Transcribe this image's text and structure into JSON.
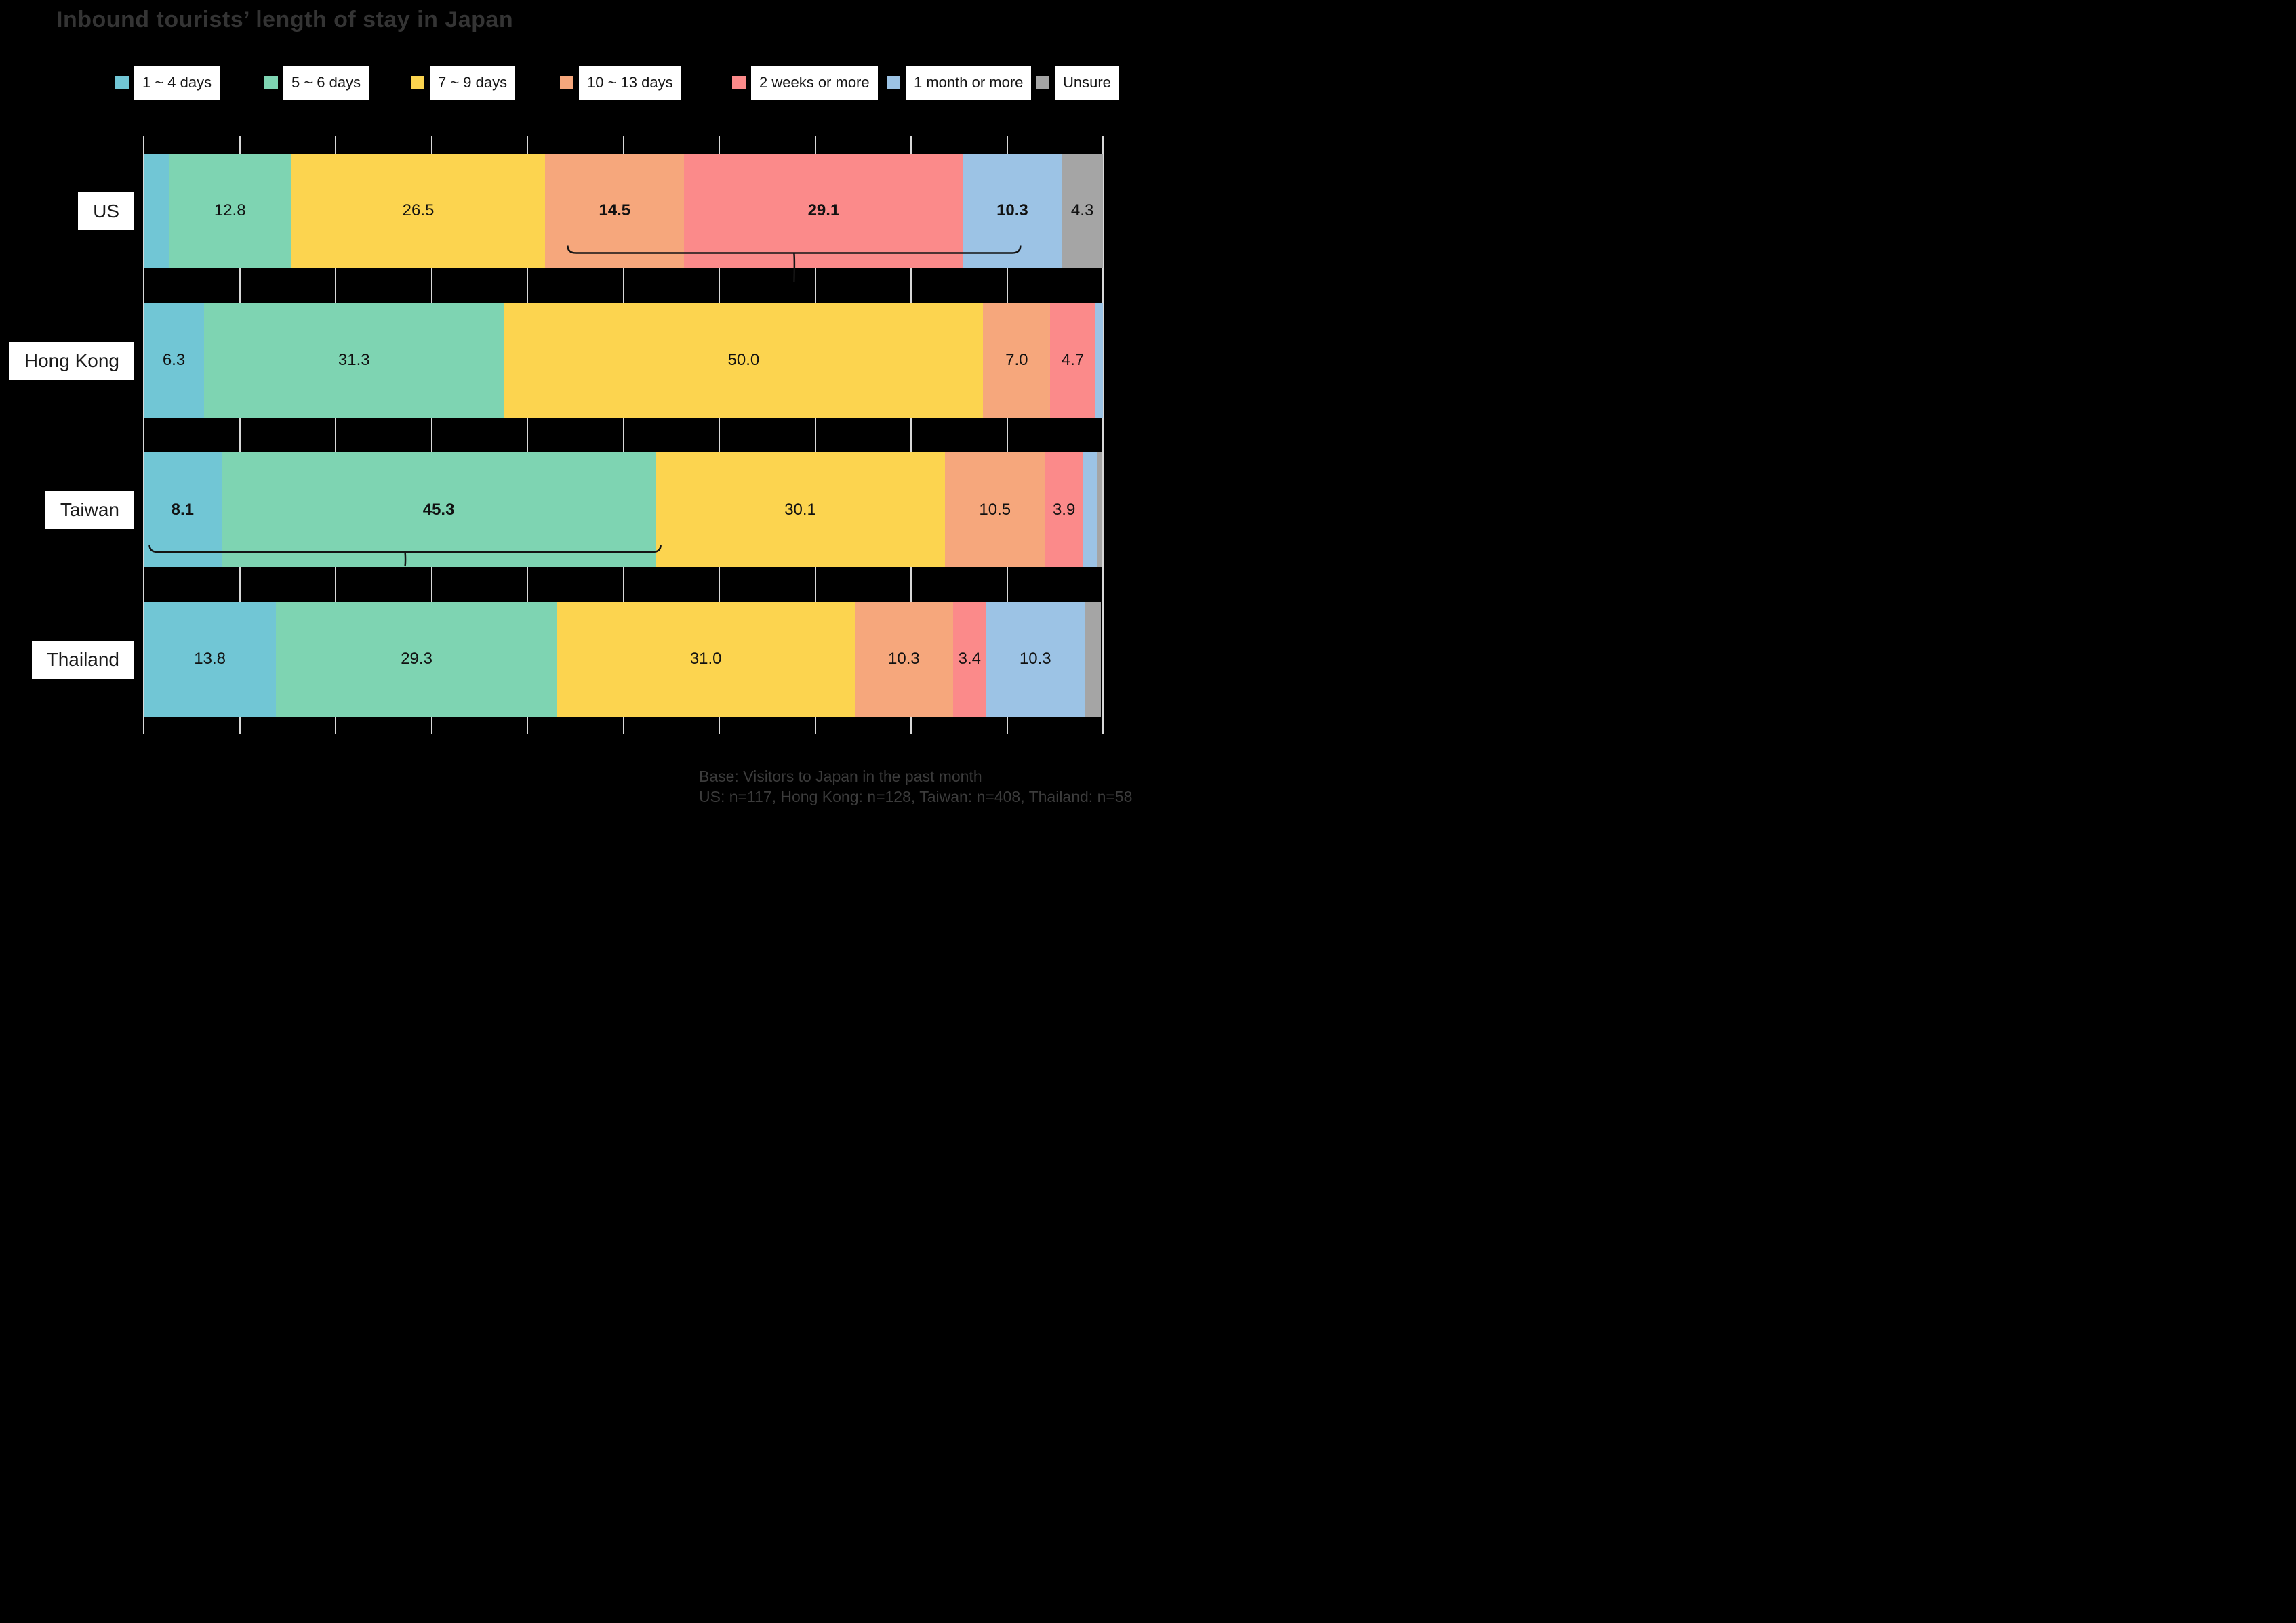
{
  "title": "Inbound tourists’ length of stay in Japan",
  "legend": [
    {
      "label": "1 ~ 4 days",
      "color": "#71c6d5"
    },
    {
      "label": "5 ~ 6 days",
      "color": "#7ed4b2"
    },
    {
      "label": "7 ~ 9 days",
      "color": "#fcd44f"
    },
    {
      "label": "10 ~ 13 days",
      "color": "#f6a77c"
    },
    {
      "label": "2 weeks or more",
      "color": "#fb8a8a"
    },
    {
      "label": "1 month or more",
      "color": "#9cc3e5"
    },
    {
      "label": "Unsure",
      "color": "#a5a5a5"
    }
  ],
  "chart_data": {
    "type": "bar",
    "orientation": "horizontal",
    "stacked": true,
    "title": "Inbound tourists’ length of stay in Japan",
    "categories": [
      "US",
      "Hong Kong",
      "Taiwan",
      "Thailand"
    ],
    "series": [
      {
        "name": "1 ~ 4 days",
        "values": [
          2.6,
          6.3,
          8.1,
          13.8
        ],
        "labels": [
          "",
          "6.3",
          "8.1",
          "13.8"
        ],
        "bold": [
          false,
          false,
          true,
          false
        ]
      },
      {
        "name": "5 ~ 6 days",
        "values": [
          12.8,
          31.3,
          45.3,
          29.3
        ],
        "labels": [
          "12.8",
          "31.3",
          "45.3",
          "29.3"
        ],
        "bold": [
          false,
          false,
          true,
          false
        ]
      },
      {
        "name": "7 ~ 9 days",
        "values": [
          26.5,
          50.0,
          30.1,
          31.0
        ],
        "labels": [
          "26.5",
          "50.0",
          "30.1",
          "31.0"
        ],
        "bold": [
          false,
          false,
          false,
          false
        ]
      },
      {
        "name": "10 ~ 13 days",
        "values": [
          14.5,
          7.0,
          10.5,
          10.3
        ],
        "labels": [
          "14.5",
          "7.0",
          "10.5",
          "10.3"
        ],
        "bold": [
          true,
          false,
          false,
          false
        ]
      },
      {
        "name": "2 weeks or more",
        "values": [
          29.1,
          4.7,
          3.9,
          3.4
        ],
        "labels": [
          "29.1",
          "4.7",
          "3.9",
          "3.4"
        ],
        "bold": [
          true,
          false,
          false,
          false
        ]
      },
      {
        "name": "1 month or more",
        "values": [
          10.3,
          0.8,
          1.5,
          10.3
        ],
        "labels": [
          "10.3",
          "",
          "",
          "10.3"
        ],
        "bold": [
          true,
          false,
          false,
          false
        ]
      },
      {
        "name": "Unsure",
        "values": [
          4.3,
          0.0,
          0.5,
          1.7
        ],
        "labels": [
          "4.3",
          "",
          "",
          ""
        ],
        "bold": [
          false,
          false,
          false,
          false
        ]
      }
    ],
    "xlim": [
      0,
      100
    ],
    "xtick_interval": 10,
    "xtick_labels_shown": false,
    "grid": "vertical light-gray lines on black panel",
    "legend_position": "top"
  },
  "annotations": {
    "brackets": [
      {
        "category": "US",
        "from_pct": 44.2,
        "to_pct": 91.4,
        "color": "#141414"
      },
      {
        "category": "Taiwan",
        "from_pct": 0.6,
        "to_pct": 53.9,
        "color": "#141414"
      }
    ]
  },
  "caption": {
    "line1": "Base: Visitors to Japan in the past month",
    "line2": "US: n=117, Hong Kong: n=128, Taiwan: n=408, Thailand: n=58"
  },
  "colors": {
    "background": "#000000",
    "gridline": "#d8d8d8",
    "title_text": "#343434",
    "caption_text": "#3c3c3c",
    "bar_label_text": "#111111",
    "row_label_bg": "#ffffff"
  }
}
